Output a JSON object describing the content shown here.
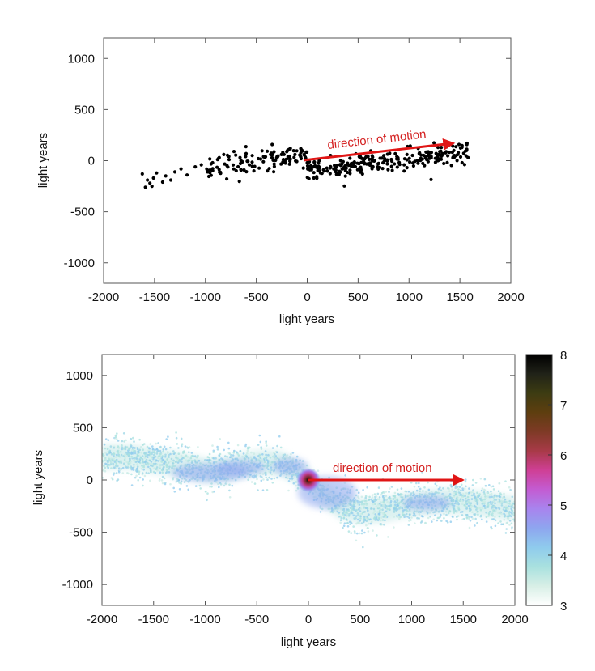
{
  "chart_data": [
    {
      "type": "scatter",
      "title": "",
      "xlabel": "light years",
      "ylabel": "light years",
      "xlim": [
        -2000,
        2000
      ],
      "ylim": [
        -1200,
        1200
      ],
      "xticks": [
        "-2000",
        "-1500",
        "-1000",
        "-500",
        "0",
        "500",
        "1000",
        "1500",
        "2000"
      ],
      "yticks": [
        "1000",
        "500",
        "0",
        "-500",
        "-1000"
      ],
      "annotation": {
        "text": "direction of motion",
        "arrow_from": [
          -30,
          5
        ],
        "arrow_to": [
          1430,
          170
        ]
      },
      "point_color": "#000000",
      "arrow_color": "#e01515",
      "description_of_points": "~480 stars along a tilted band from about (-1600,-220) to (1580,150), dense cluster near x 0..800, y -100..100",
      "anchor_points": [
        [
          -1620,
          -130
        ],
        [
          -1590,
          -260
        ],
        [
          -1570,
          -190
        ],
        [
          -1545,
          -220
        ],
        [
          -1525,
          -250
        ],
        [
          -1510,
          -170
        ],
        [
          -1480,
          -120
        ],
        [
          -1420,
          -210
        ],
        [
          -1390,
          -150
        ],
        [
          -1340,
          -190
        ],
        [
          -1300,
          -110
        ],
        [
          -1240,
          -80
        ],
        [
          -1180,
          -140
        ],
        [
          -1100,
          -60
        ],
        [
          -1040,
          -40
        ],
        [
          -980,
          -110
        ],
        [
          -930,
          -20
        ],
        [
          -880,
          10
        ],
        [
          -820,
          60
        ],
        [
          -770,
          40
        ],
        [
          -720,
          90
        ],
        [
          -660,
          30
        ],
        [
          -600,
          70
        ],
        [
          -540,
          50
        ],
        [
          -480,
          20
        ],
        [
          -420,
          40
        ],
        [
          -360,
          60
        ],
        [
          -300,
          30
        ],
        [
          -240,
          80
        ],
        [
          -180,
          110
        ],
        [
          -120,
          60
        ],
        [
          -60,
          20
        ],
        [
          0,
          -20
        ],
        [
          80,
          -60
        ],
        [
          160,
          -90
        ],
        [
          260,
          -80
        ],
        [
          360,
          -70
        ],
        [
          460,
          -50
        ],
        [
          560,
          -30
        ],
        [
          660,
          0
        ],
        [
          760,
          20
        ],
        [
          880,
          40
        ],
        [
          980,
          60
        ],
        [
          1100,
          70
        ],
        [
          1220,
          80
        ],
        [
          1330,
          70
        ],
        [
          1440,
          100
        ],
        [
          1520,
          130
        ],
        [
          1570,
          170
        ],
        [
          1580,
          30
        ]
      ]
    },
    {
      "type": "heatmap",
      "title": "",
      "xlabel": "light years",
      "ylabel": "light years",
      "xlim": [
        -2000,
        2000
      ],
      "ylim": [
        -1200,
        1200
      ],
      "xticks": [
        "-2000",
        "-1500",
        "-1000",
        "-500",
        "0",
        "500",
        "1000",
        "1500",
        "2000"
      ],
      "yticks": [
        "1000",
        "500",
        "0",
        "-500",
        "-1000"
      ],
      "annotation": {
        "text": "direction of motion",
        "arrow_from": [
          0,
          0
        ],
        "arrow_to": [
          1490,
          0
        ]
      },
      "arrow_color": "#e01515",
      "colorbar": {
        "min": 3,
        "max": 8,
        "ticks": [
          "8",
          "7",
          "6",
          "5",
          "4",
          "3"
        ],
        "colors": [
          "#ffffff",
          "#d8efe6",
          "#a9e1df",
          "#8fcbed",
          "#8ea6ef",
          "#a884ee",
          "#c35cd2",
          "#cf3f96",
          "#a83a48",
          "#7e3a26",
          "#5e3e0f",
          "#3d3c12",
          "#202218",
          "#000000"
        ]
      },
      "band_centerline": [
        [
          -1950,
          220
        ],
        [
          -1700,
          220
        ],
        [
          -1500,
          180
        ],
        [
          -1250,
          150
        ],
        [
          -1000,
          90
        ],
        [
          -800,
          100
        ],
        [
          -600,
          150
        ],
        [
          -400,
          170
        ],
        [
          -250,
          150
        ],
        [
          -120,
          80
        ],
        [
          0,
          0
        ],
        [
          120,
          -120
        ],
        [
          300,
          -250
        ],
        [
          500,
          -300
        ],
        [
          700,
          -290
        ],
        [
          900,
          -250
        ],
        [
          1100,
          -220
        ],
        [
          1300,
          -200
        ],
        [
          1500,
          -210
        ],
        [
          1700,
          -230
        ],
        [
          1950,
          -270
        ]
      ]
    }
  ]
}
